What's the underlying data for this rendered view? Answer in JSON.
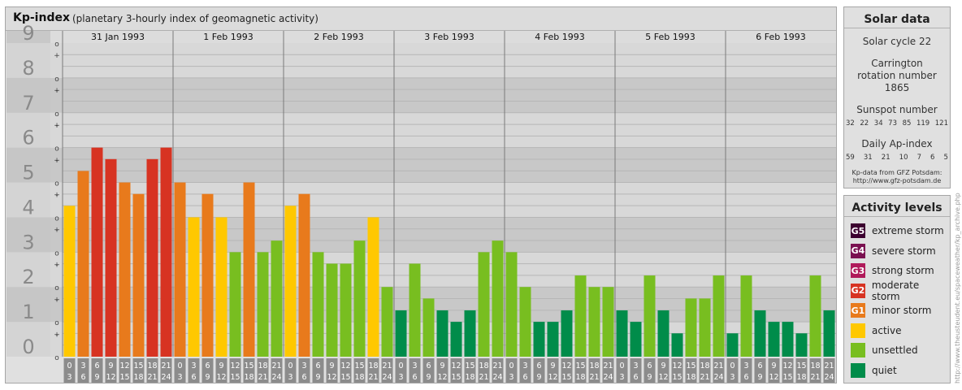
{
  "header": {
    "title": "Kp-index",
    "subtitle": "(planetary 3-hourly index of geomagnetic activity)"
  },
  "chart_data": {
    "type": "bar",
    "y_axis": {
      "ticks": [
        "0",
        "1",
        "2",
        "3",
        "4",
        "5",
        "6",
        "7",
        "8",
        "9"
      ],
      "minor_marks": [
        "+",
        "o",
        "-"
      ],
      "ylim": [
        0,
        9
      ]
    },
    "days": [
      "31 Jan 1993",
      "1 Feb 1993",
      "2 Feb 1993",
      "3 Feb 1993",
      "4 Feb 1993",
      "5 Feb 1993",
      "6 Feb 1993"
    ],
    "interval_starts": [
      "0",
      "3",
      "6",
      "9",
      "12",
      "15",
      "18",
      "21"
    ],
    "interval_ends": [
      "3",
      "6",
      "9",
      "12",
      "15",
      "18",
      "21",
      "24"
    ],
    "values": [
      [
        4.33,
        5.33,
        6.0,
        5.67,
        5.0,
        4.67,
        5.67,
        6.0
      ],
      [
        5.0,
        4.0,
        4.67,
        4.0,
        3.0,
        5.0,
        3.0,
        3.33
      ],
      [
        4.33,
        4.67,
        3.0,
        2.67,
        2.67,
        3.33,
        4.0,
        2.0
      ],
      [
        1.33,
        2.67,
        1.67,
        1.33,
        1.0,
        1.33,
        3.0,
        3.33
      ],
      [
        3.0,
        2.0,
        1.0,
        1.0,
        1.33,
        2.33,
        2.0,
        2.0
      ],
      [
        1.33,
        1.0,
        2.33,
        1.33,
        0.67,
        1.67,
        1.67,
        2.33
      ],
      [
        0.67,
        2.33,
        1.33,
        1.0,
        1.0,
        0.67,
        2.33,
        1.33
      ]
    ],
    "level_colors": {
      "quiet": "#008c4a",
      "unsettled": "#78be20",
      "active": "#ffc800",
      "minor": "#e87a1c",
      "moderate": "#d73322",
      "strong": "#b01a5a",
      "severe": "#7a1050",
      "extreme": "#3c0030"
    }
  },
  "solar_data": {
    "title": "Solar data",
    "solar_cycle": "Solar cycle 22",
    "carrington": "Carrington rotation number 1865",
    "sunspot_label": "Sunspot number",
    "sunspot_values": [
      "32",
      "22",
      "34",
      "73",
      "85",
      "119",
      "121"
    ],
    "ap_label": "Daily Ap-index",
    "ap_values": [
      "59",
      "31",
      "21",
      "10",
      "7",
      "6",
      "5"
    ],
    "credit_line1": "Kp-data from GFZ Potsdam:",
    "credit_line2": "http://www.gfz-potsdam.de"
  },
  "activity_levels": {
    "title": "Activity levels",
    "items": [
      {
        "badge": "G5",
        "label": "extreme storm",
        "color": "#3c0030"
      },
      {
        "badge": "G4",
        "label": "severe storm",
        "color": "#7a1050"
      },
      {
        "badge": "G3",
        "label": "strong storm",
        "color": "#b01a5a"
      },
      {
        "badge": "G2",
        "label": "moderate storm",
        "color": "#d73322"
      },
      {
        "badge": "G1",
        "label": "minor storm",
        "color": "#e87a1c"
      },
      {
        "badge": "",
        "label": "active",
        "color": "#ffc800"
      },
      {
        "badge": "",
        "label": "unsettled",
        "color": "#78be20"
      },
      {
        "badge": "",
        "label": "quiet",
        "color": "#008c4a"
      }
    ]
  },
  "watermark": "http://www.theusteudent.eu/spaceweather/kp_archive.php"
}
